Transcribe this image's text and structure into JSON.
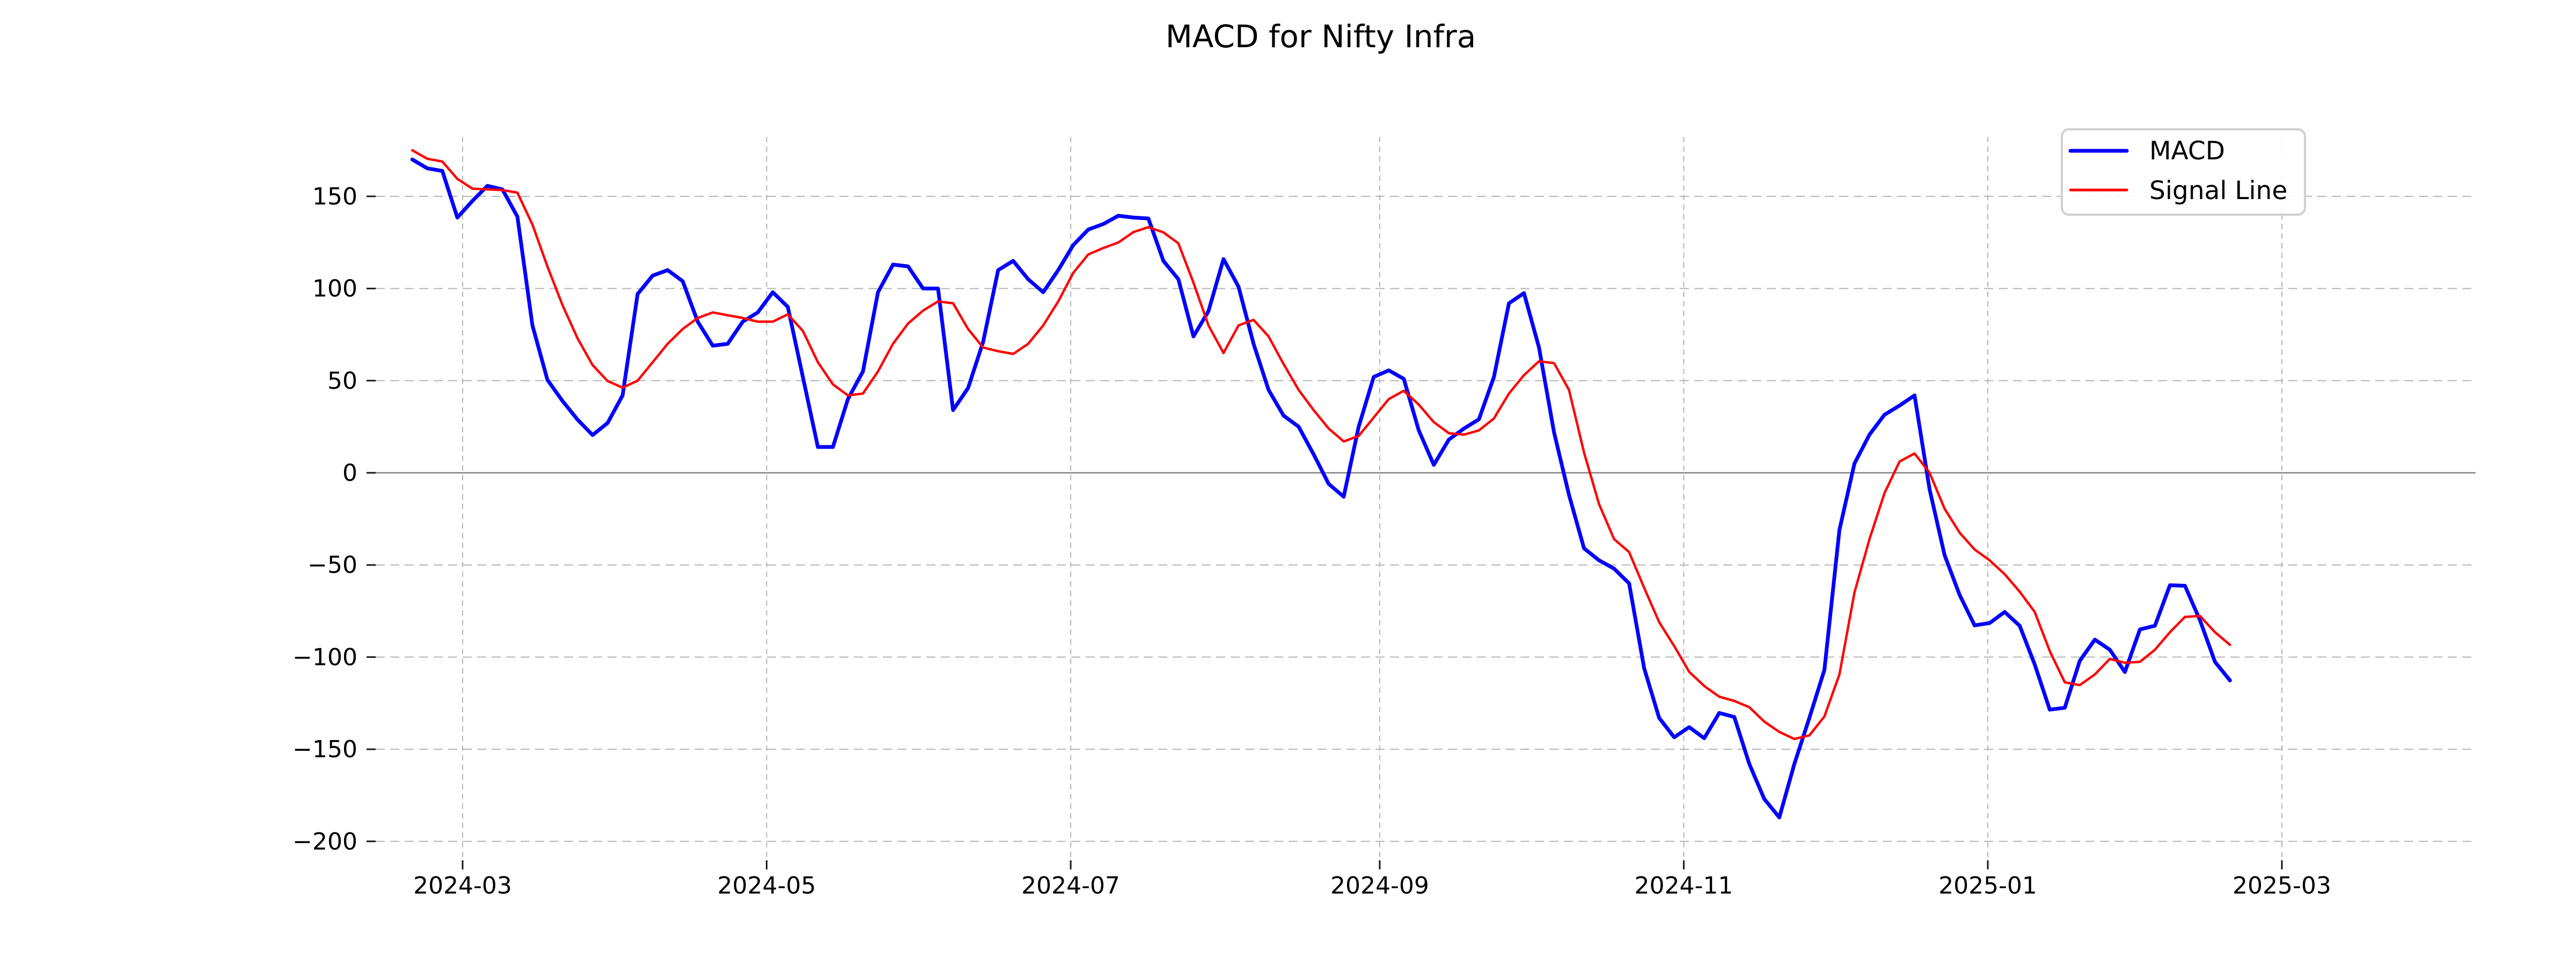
{
  "page": {
    "background": "#ffffff"
  },
  "chart_data": {
    "type": "line",
    "title": "MACD for Nifty Infra",
    "xlabel": "",
    "ylabel": "",
    "grid": true,
    "legend": {
      "position": "upper right",
      "entries": [
        {
          "label": "MACD",
          "color": "#0000ff"
        },
        {
          "label": "Signal Line",
          "color": "#ff0000"
        }
      ]
    },
    "x_axis": {
      "epoch": "2024-03-01",
      "tick_labels": [
        "2024-03",
        "2024-05",
        "2024-07",
        "2024-09",
        "2024-11",
        "2025-01",
        "2025-03"
      ],
      "tick_day_offsets": [
        0,
        61,
        122,
        184,
        245,
        306,
        365
      ]
    },
    "y_axis": {
      "ticks": [
        150,
        100,
        50,
        0,
        -50,
        -100,
        -150,
        -200
      ],
      "tick_labels": [
        "150",
        "100",
        "50",
        "0",
        "−50",
        "−100",
        "−150",
        "−200"
      ],
      "ylim": [
        -209,
        182
      ]
    },
    "zero_line": {
      "value": 0,
      "color": "#808080"
    },
    "series": {
      "start_day_offset": -10.1,
      "step_days": 3.014,
      "start_date_approx": "2024-02-20",
      "end_date_approx": "2025-02-18",
      "macd": [
        170,
        165.2,
        163.8,
        138.5,
        147.5,
        155.7,
        153.8,
        139,
        80,
        50.4,
        39,
        28.9,
        20.5,
        27,
        42,
        97,
        107,
        110,
        104,
        82,
        69,
        70,
        82,
        87,
        98,
        90,
        52,
        14,
        14,
        40,
        55,
        98,
        113,
        112,
        100,
        100,
        34,
        46,
        71,
        110,
        115,
        105,
        98,
        110,
        123.6,
        132,
        135,
        139.5,
        138.5,
        138,
        115,
        105,
        74,
        87.7,
        116,
        101,
        70,
        45,
        31,
        25,
        10,
        -6,
        -13,
        25,
        52,
        55.6,
        51,
        23,
        4.3,
        18,
        24,
        29,
        52,
        92,
        97.5,
        68,
        22,
        -12,
        -41,
        -47.5,
        -52,
        -60,
        -106,
        -133,
        -143.5,
        -138,
        -144,
        -130.3,
        -132.5,
        -158,
        -177,
        -187,
        -158,
        -133,
        -107,
        -31,
        5,
        20.7,
        31.5,
        36.5,
        42,
        -9,
        -44.7,
        -66.3,
        -82.8,
        -81.5,
        -75.5,
        -83,
        -104,
        -128.5,
        -127.5,
        -102,
        -90.5,
        -96,
        -108.1,
        -85,
        -83,
        -61,
        -61.3,
        -80,
        -102.6,
        -112.7
      ],
      "signal": [
        175,
        170.4,
        168.9,
        159.5,
        154.2,
        153.8,
        153.4,
        152,
        134.7,
        111.9,
        91,
        73,
        58.5,
        49.8,
        46.2,
        50,
        60,
        70,
        78,
        84,
        87,
        85.5,
        84,
        82,
        82,
        86,
        77,
        60,
        48,
        42,
        43,
        55,
        70,
        81,
        88,
        93,
        92,
        78,
        68,
        66,
        64.5,
        70,
        80,
        93,
        108.5,
        118.5,
        122,
        125,
        130.6,
        133.3,
        130.5,
        124.5,
        103.2,
        80,
        65,
        80,
        83,
        74,
        59,
        45,
        34,
        24,
        17,
        20,
        30,
        40,
        44.5,
        37,
        27.5,
        21.5,
        20.7,
        23,
        29.5,
        43,
        53,
        60.5,
        59.5,
        45,
        11,
        -17,
        -36,
        -43,
        -62.4,
        -81,
        -94,
        -108,
        -115.7,
        -121.5,
        -123.8,
        -127.2,
        -135,
        -140.6,
        -144.4,
        -142.5,
        -132.2,
        -109.4,
        -65,
        -36,
        -11,
        6.1,
        10.5,
        0,
        -19.5,
        -32.5,
        -41.6,
        -47.5,
        -55,
        -64.5,
        -75.5,
        -96.7,
        -113.7,
        -115.2,
        -109.4,
        -101,
        -103.1,
        -102.6,
        -96,
        -86.5,
        -78.2,
        -77.7,
        -86.5,
        -93.4
      ]
    }
  }
}
